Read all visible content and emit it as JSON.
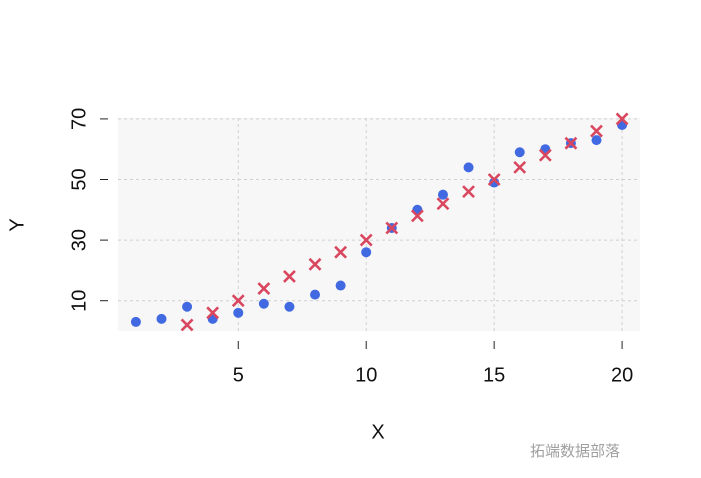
{
  "chart_data": {
    "type": "scatter",
    "xlabel": "X",
    "ylabel": "Y",
    "xlim": [
      0.3,
      20.7
    ],
    "ylim": [
      0,
      70.3
    ],
    "xticks": [
      5,
      10,
      15,
      20
    ],
    "yticks": [
      10,
      30,
      50,
      70
    ],
    "grid": true,
    "series": [
      {
        "marker": "circle",
        "color": "#4169e1",
        "x": [
          1,
          2,
          3,
          4,
          5,
          6,
          7,
          8,
          9,
          10,
          11,
          12,
          13,
          14,
          15,
          16,
          17,
          18,
          19,
          20
        ],
        "values": [
          3,
          4,
          8,
          4,
          6,
          9,
          8,
          12,
          15,
          26,
          34,
          40,
          45,
          54,
          49,
          59,
          60,
          62,
          63,
          68
        ]
      },
      {
        "marker": "cross",
        "color": "#d9475f",
        "x": [
          3,
          4,
          5,
          6,
          7,
          8,
          9,
          10,
          11,
          12,
          13,
          14,
          15,
          16,
          17,
          18,
          19,
          20
        ],
        "values": [
          2,
          6,
          10,
          14,
          18,
          22,
          26,
          30,
          34,
          38,
          42,
          46,
          50,
          54,
          58,
          62,
          66,
          70
        ]
      }
    ],
    "watermark": "拓端数据部落"
  }
}
